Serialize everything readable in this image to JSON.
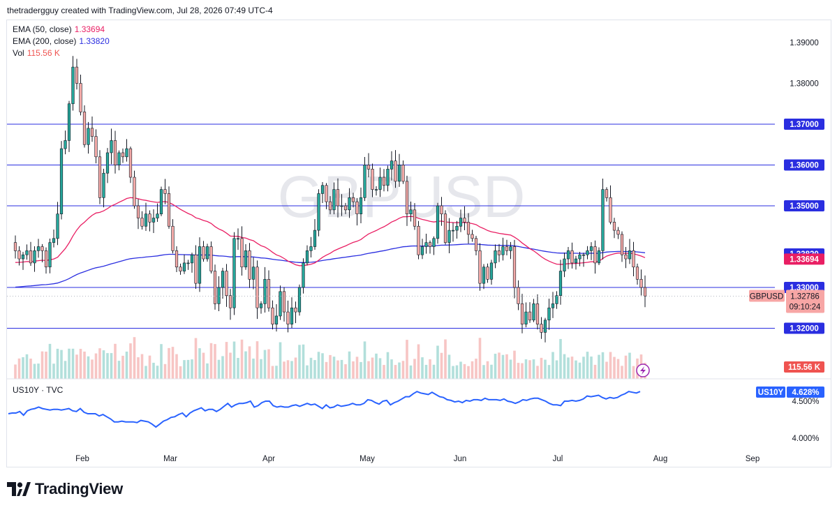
{
  "header": {
    "credit": "thetradergguy created with TradingView.com, Jul 28, 2026 07:49 UTC-4"
  },
  "brand": {
    "name": "TradingView"
  },
  "watermark": "GBPUSD",
  "legend": {
    "ema50": {
      "label": "EMA (50, close)",
      "value": "1.33694",
      "color": "#e91e63"
    },
    "ema200": {
      "label": "EMA (200, close)",
      "value": "1.33820",
      "color": "#2a2ee0"
    },
    "vol": {
      "label": "Vol",
      "value": "115.56 K",
      "color": "#ef5350"
    }
  },
  "symbol_tag": {
    "name": "GBPUSD",
    "price": "1.32786",
    "countdown": "09:10:24"
  },
  "vol_tag": "115.56 K",
  "sub_pane": {
    "label": "US10Y · TVC",
    "tag_name": "US10Y",
    "tag_value": "4.628%"
  },
  "colors": {
    "up": "#26a69a",
    "down": "#ef5350",
    "level": "#2a2ee0",
    "us10y": "#2962ff"
  },
  "chart_data": [
    {
      "type": "candlestick",
      "symbol": "GBPUSD",
      "x_labels": [
        "Feb",
        "Mar",
        "Apr",
        "May",
        "Jun",
        "Jul",
        "Aug",
        "Sep"
      ],
      "y_ticks": [
        "1.39000",
        "1.38000",
        "1.37000",
        "1.36000",
        "1.35000",
        "1.33000",
        "1.32000"
      ],
      "ylim": [
        1.3134,
        1.3986
      ],
      "horizontal_levels": [
        "1.37000",
        "1.36000",
        "1.35000",
        "1.33000",
        "1.32000"
      ],
      "last_price": 1.32786,
      "close": [
        1.339,
        1.337,
        1.338,
        1.339,
        1.336,
        1.339,
        1.34,
        1.339,
        1.335,
        1.341,
        1.342,
        1.348,
        1.364,
        1.366,
        1.375,
        1.384,
        1.38,
        1.373,
        1.365,
        1.369,
        1.367,
        1.362,
        1.352,
        1.358,
        1.363,
        1.366,
        1.36,
        1.363,
        1.362,
        1.364,
        1.357,
        1.35,
        1.347,
        1.345,
        1.348,
        1.346,
        1.347,
        1.348,
        1.354,
        1.353,
        1.345,
        1.339,
        1.335,
        1.334,
        1.336,
        1.336,
        1.338,
        1.331,
        1.34,
        1.337,
        1.34,
        1.334,
        1.326,
        1.33,
        1.334,
        1.328,
        1.325,
        1.342,
        1.342,
        1.335,
        1.339,
        1.332,
        1.335,
        1.325,
        1.326,
        1.332,
        1.325,
        1.321,
        1.323,
        1.329,
        1.324,
        1.321,
        1.325,
        1.324,
        1.33,
        1.336,
        1.339,
        1.34,
        1.344,
        1.353,
        1.355,
        1.351,
        1.349,
        1.354,
        1.35,
        1.35,
        1.349,
        1.352,
        1.351,
        1.348,
        1.352,
        1.36,
        1.359,
        1.354,
        1.354,
        1.357,
        1.355,
        1.359,
        1.361,
        1.356,
        1.36,
        1.356,
        1.348,
        1.349,
        1.345,
        1.338,
        1.34,
        1.341,
        1.34,
        1.342,
        1.35,
        1.348,
        1.341,
        1.344,
        1.344,
        1.345,
        1.347,
        1.346,
        1.343,
        1.342,
        1.339,
        1.331,
        1.335,
        1.332,
        1.336,
        1.339,
        1.338,
        1.34,
        1.339,
        1.34,
        1.33,
        1.326,
        1.321,
        1.324,
        1.322,
        1.326,
        1.321,
        1.319,
        1.322,
        1.325,
        1.326,
        1.328,
        1.334,
        1.337,
        1.339,
        1.336,
        1.337,
        1.338,
        1.338,
        1.339,
        1.34,
        1.336,
        1.339,
        1.354,
        1.352,
        1.346,
        1.344,
        1.343,
        1.338,
        1.337,
        1.339,
        1.335,
        1.332,
        1.33,
        1.3279
      ]
    },
    {
      "type": "line",
      "series": [
        {
          "name": "EMA (50, close)",
          "last": 1.33694
        },
        {
          "name": "EMA (200, close)",
          "last": 1.3382
        }
      ]
    },
    {
      "type": "bar",
      "series": [
        {
          "name": "Vol",
          "last": "115.56 K"
        }
      ]
    },
    {
      "type": "line",
      "symbol": "US10Y",
      "y_ticks": [
        "4.500%",
        "4.000%"
      ],
      "ylim": [
        3.95,
        4.75
      ],
      "values": [
        4.33,
        4.34,
        4.34,
        4.36,
        4.31,
        4.37,
        4.39,
        4.4,
        4.42,
        4.4,
        4.39,
        4.38,
        4.39,
        4.39,
        4.38,
        4.39,
        4.4,
        4.37,
        4.36,
        4.4,
        4.35,
        4.33,
        4.33,
        4.33,
        4.3,
        4.32,
        4.29,
        4.26,
        4.22,
        4.22,
        4.23,
        4.22,
        4.22,
        4.22,
        4.21,
        4.24,
        4.23,
        4.22,
        4.19,
        4.15,
        4.19,
        4.23,
        4.25,
        4.28,
        4.29,
        4.32,
        4.34,
        4.29,
        4.34,
        4.37,
        4.39,
        4.41,
        4.37,
        4.39,
        4.39,
        4.36,
        4.39,
        4.43,
        4.47,
        4.42,
        4.45,
        4.47,
        4.47,
        4.48,
        4.5,
        4.42,
        4.44,
        4.48,
        4.5,
        4.5,
        4.44,
        4.42,
        4.43,
        4.42,
        4.42,
        4.44,
        4.45,
        4.43,
        4.45,
        4.47,
        4.45,
        4.46,
        4.43,
        4.4,
        4.45,
        4.41,
        4.42,
        4.45,
        4.43,
        4.44,
        4.45,
        4.47,
        4.45,
        4.45,
        4.47,
        4.52,
        4.51,
        4.48,
        4.46,
        4.5,
        4.51,
        4.45,
        4.48,
        4.5,
        4.53,
        4.56,
        4.56,
        4.6,
        4.63,
        4.61,
        4.6,
        4.59,
        4.62,
        4.59,
        4.56,
        4.55,
        4.52,
        4.51,
        4.49,
        4.5,
        4.48,
        4.51,
        4.5,
        4.52,
        4.52,
        4.51,
        4.54,
        4.52,
        4.52,
        4.52,
        4.51,
        4.53,
        4.5,
        4.49,
        4.47,
        4.49,
        4.52,
        4.51,
        4.53,
        4.54,
        4.54,
        4.52,
        4.5,
        4.47,
        4.45,
        4.45,
        4.44,
        4.5,
        4.5,
        4.51,
        4.5,
        4.51,
        4.53,
        4.57,
        4.56,
        4.57,
        4.58,
        4.55,
        4.53,
        4.55,
        4.54,
        4.55,
        4.58,
        4.6,
        4.63,
        4.62,
        4.61,
        4.63
      ]
    }
  ]
}
